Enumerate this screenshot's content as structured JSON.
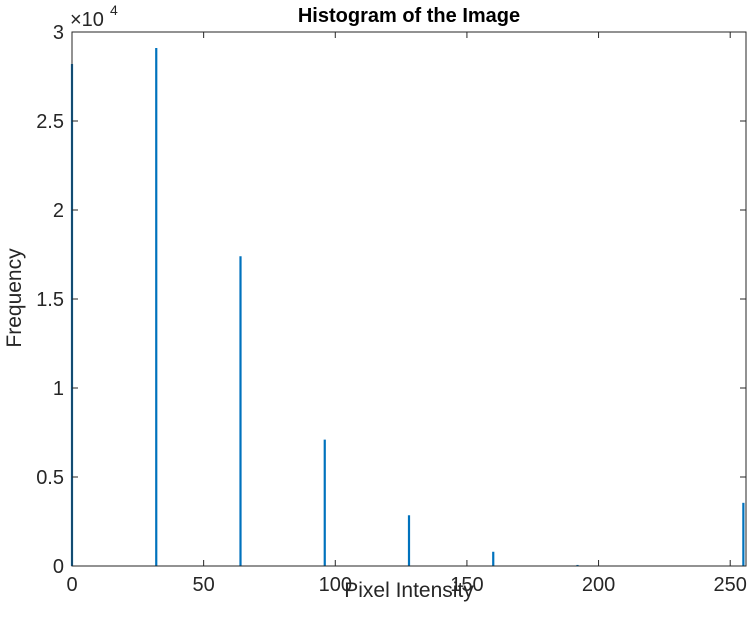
{
  "chart_data": {
    "type": "bar",
    "title": "Histogram of the Image",
    "xlabel": "Pixel Intensity",
    "ylabel": "Frequency",
    "xlim": [
      0,
      256
    ],
    "ylim": [
      0,
      30000
    ],
    "x_ticks": [
      0,
      50,
      100,
      150,
      200,
      250
    ],
    "y_ticks": [
      0,
      5000,
      10000,
      15000,
      20000,
      25000,
      30000
    ],
    "y_tick_labels": [
      "0",
      "0.5",
      "1",
      "1.5",
      "2",
      "2.5",
      "3"
    ],
    "y_exponent_base": "×10",
    "y_exponent_power": "4",
    "bar_color": "#0072BD",
    "grid": false,
    "series": [
      {
        "x": [
          0,
          32,
          64,
          96,
          128,
          160,
          192,
          255
        ],
        "values": [
          28200,
          29100,
          17400,
          7100,
          2850,
          800,
          60,
          3550
        ]
      }
    ]
  }
}
